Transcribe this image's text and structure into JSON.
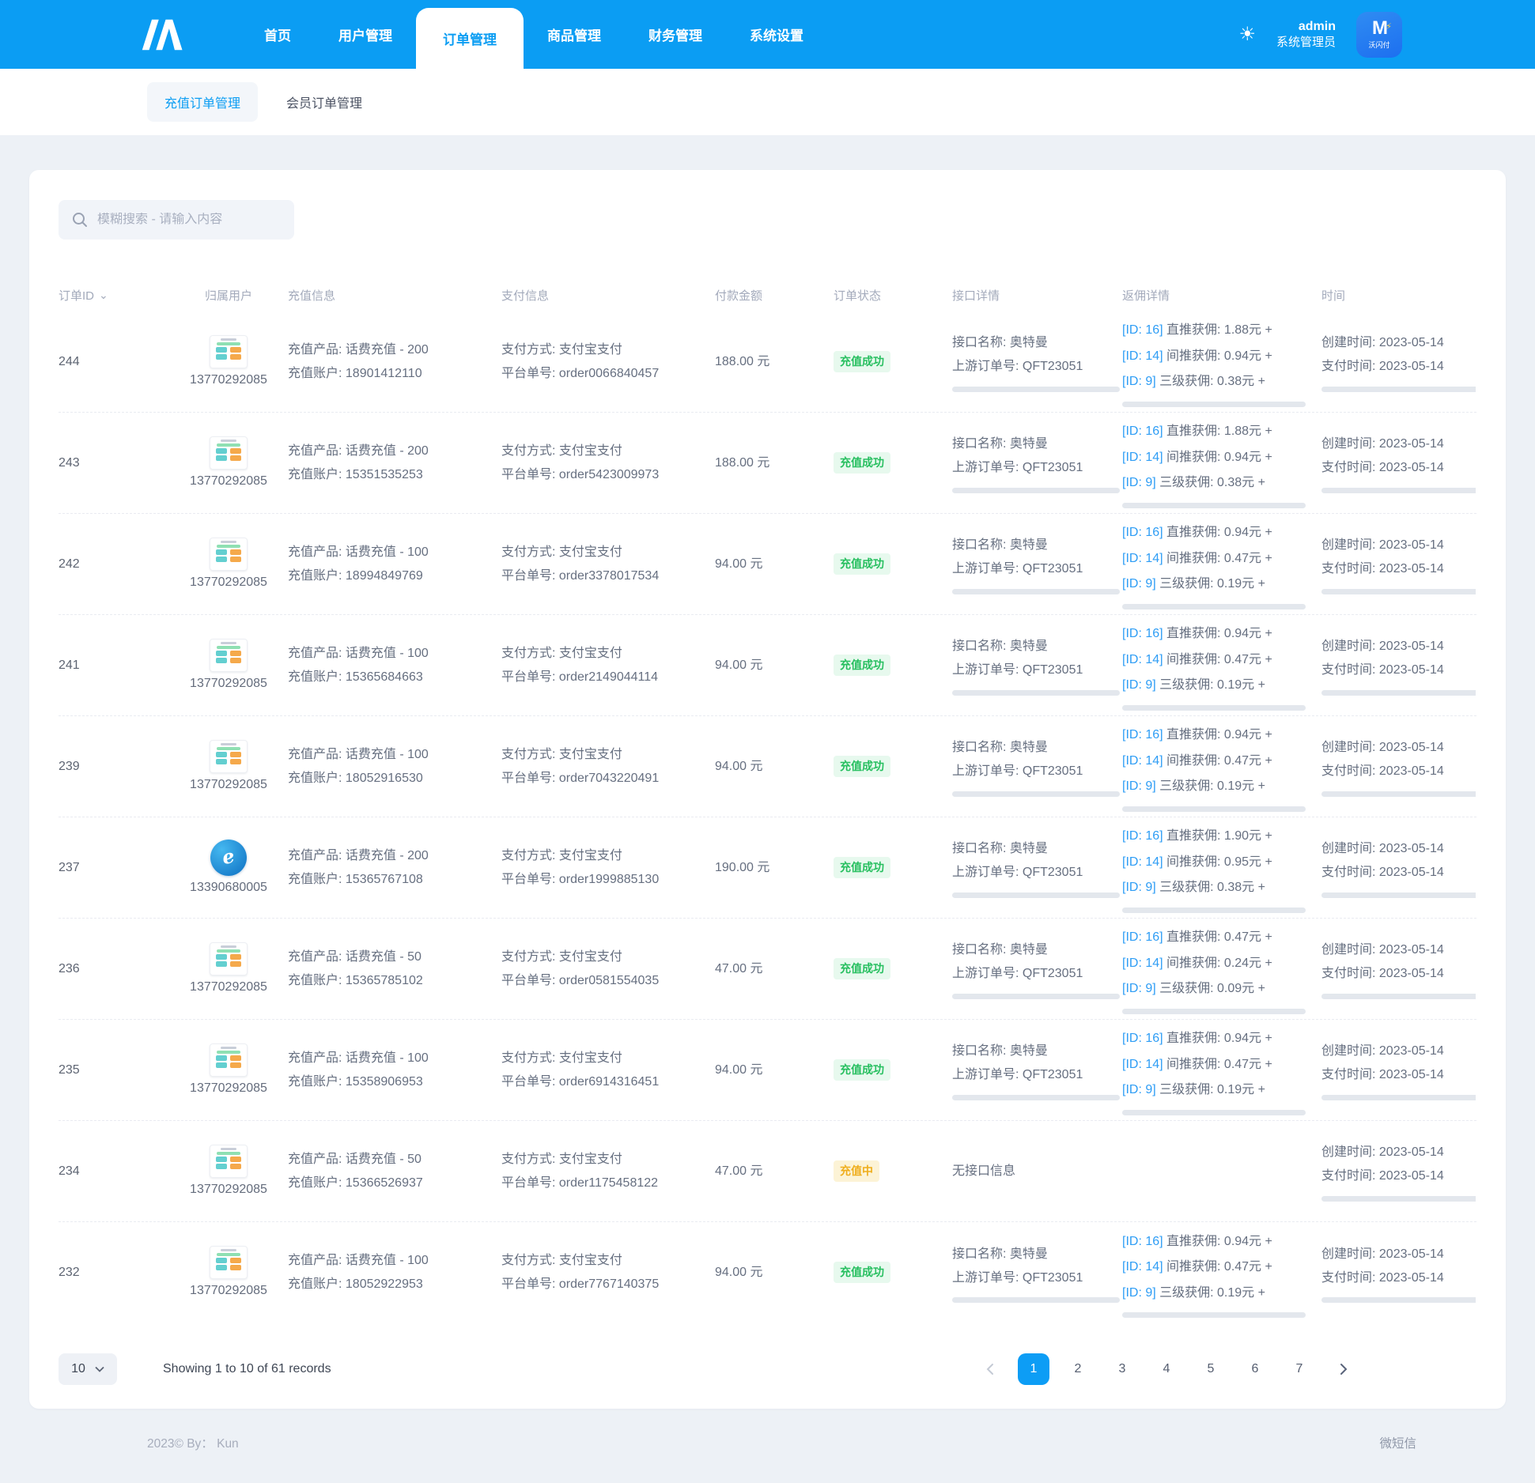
{
  "navbar": {
    "menu": [
      {
        "label": "首页",
        "active": false
      },
      {
        "label": "用户管理",
        "active": false
      },
      {
        "label": "订单管理",
        "active": true
      },
      {
        "label": "商品管理",
        "active": false
      },
      {
        "label": "财务管理",
        "active": false
      },
      {
        "label": "系统设置",
        "active": false
      }
    ],
    "admin_name": "admin",
    "admin_role": "系统管理员",
    "avatar_mark": "M",
    "avatar_caption": "沃闪付",
    "colors": {
      "navbar_blue": "#0b9df3",
      "accent_blue": "#0d9df5"
    }
  },
  "subnav": {
    "tabs": [
      {
        "label": "充值订单管理",
        "active": true
      },
      {
        "label": "会员订单管理",
        "active": false
      }
    ]
  },
  "search": {
    "placeholder": "模糊搜索 - 请输入内容"
  },
  "table": {
    "headers": [
      "订单ID",
      "归属用户",
      "充值信息",
      "支付信息",
      "付款金额",
      "订单状态",
      "接口详情",
      "返佣详情",
      "时间"
    ],
    "status_colors": {
      "success_text": "#26bf5f",
      "success_bg": "#e7f9ee",
      "pending_text": "#efae1d",
      "pending_bg": "#fcf3d6"
    },
    "rows": [
      {
        "id": "244",
        "phone": "13770292085",
        "avatar": "app",
        "product": "充值产品: 话费充值 - 200",
        "account": "充值账户: 18901412110",
        "pay_method": "支付方式: 支付宝支付",
        "pay_no": "平台单号: order0066840457",
        "amount": "188.00 元",
        "status": "充值成功",
        "status_type": "success",
        "api_name": "接口名称: 奥特曼",
        "api_order": "上游订单号: QFT23051",
        "commissions": [
          {
            "id": "[ID: 16]",
            "text": "直推获佣: 1.88元 +"
          },
          {
            "id": "[ID: 14]",
            "text": "间推获佣: 0.94元 +"
          },
          {
            "id": "[ID: 9]",
            "text": "三级获佣: 0.38元 +"
          }
        ],
        "created": "创建时间: 2023-05-14",
        "paid": "支付时间: 2023-05-14"
      },
      {
        "id": "243",
        "phone": "13770292085",
        "avatar": "app",
        "product": "充值产品: 话费充值 - 200",
        "account": "充值账户: 15351535253",
        "pay_method": "支付方式: 支付宝支付",
        "pay_no": "平台单号: order5423009973",
        "amount": "188.00 元",
        "status": "充值成功",
        "status_type": "success",
        "api_name": "接口名称: 奥特曼",
        "api_order": "上游订单号: QFT23051",
        "commissions": [
          {
            "id": "[ID: 16]",
            "text": "直推获佣: 1.88元 +"
          },
          {
            "id": "[ID: 14]",
            "text": "间推获佣: 0.94元 +"
          },
          {
            "id": "[ID: 9]",
            "text": "三级获佣: 0.38元 +"
          }
        ],
        "created": "创建时间: 2023-05-14",
        "paid": "支付时间: 2023-05-14"
      },
      {
        "id": "242",
        "phone": "13770292085",
        "avatar": "app",
        "product": "充值产品: 话费充值 - 100",
        "account": "充值账户: 18994849769",
        "pay_method": "支付方式: 支付宝支付",
        "pay_no": "平台单号: order3378017534",
        "amount": "94.00 元",
        "status": "充值成功",
        "status_type": "success",
        "api_name": "接口名称: 奥特曼",
        "api_order": "上游订单号: QFT23051",
        "commissions": [
          {
            "id": "[ID: 16]",
            "text": "直推获佣: 0.94元 +"
          },
          {
            "id": "[ID: 14]",
            "text": "间推获佣: 0.47元 +"
          },
          {
            "id": "[ID: 9]",
            "text": "三级获佣: 0.19元 +"
          }
        ],
        "created": "创建时间: 2023-05-14",
        "paid": "支付时间: 2023-05-14"
      },
      {
        "id": "241",
        "phone": "13770292085",
        "avatar": "app",
        "product": "充值产品: 话费充值 - 100",
        "account": "充值账户: 15365684663",
        "pay_method": "支付方式: 支付宝支付",
        "pay_no": "平台单号: order2149044114",
        "amount": "94.00 元",
        "status": "充值成功",
        "status_type": "success",
        "api_name": "接口名称: 奥特曼",
        "api_order": "上游订单号: QFT23051",
        "commissions": [
          {
            "id": "[ID: 16]",
            "text": "直推获佣: 0.94元 +"
          },
          {
            "id": "[ID: 14]",
            "text": "间推获佣: 0.47元 +"
          },
          {
            "id": "[ID: 9]",
            "text": "三级获佣: 0.19元 +"
          }
        ],
        "created": "创建时间: 2023-05-14",
        "paid": "支付时间: 2023-05-14"
      },
      {
        "id": "239",
        "phone": "13770292085",
        "avatar": "app",
        "product": "充值产品: 话费充值 - 100",
        "account": "充值账户: 18052916530",
        "pay_method": "支付方式: 支付宝支付",
        "pay_no": "平台单号: order7043220491",
        "amount": "94.00 元",
        "status": "充值成功",
        "status_type": "success",
        "api_name": "接口名称: 奥特曼",
        "api_order": "上游订单号: QFT23051",
        "commissions": [
          {
            "id": "[ID: 16]",
            "text": "直推获佣: 0.94元 +"
          },
          {
            "id": "[ID: 14]",
            "text": "间推获佣: 0.47元 +"
          },
          {
            "id": "[ID: 9]",
            "text": "三级获佣: 0.19元 +"
          }
        ],
        "created": "创建时间: 2023-05-14",
        "paid": "支付时间: 2023-05-14"
      },
      {
        "id": "237",
        "phone": "13390680005",
        "avatar": "telecom",
        "product": "充值产品: 话费充值 - 200",
        "account": "充值账户: 15365767108",
        "pay_method": "支付方式: 支付宝支付",
        "pay_no": "平台单号: order1999885130",
        "amount": "190.00 元",
        "status": "充值成功",
        "status_type": "success",
        "api_name": "接口名称: 奥特曼",
        "api_order": "上游订单号: QFT23051",
        "commissions": [
          {
            "id": "[ID: 16]",
            "text": "直推获佣: 1.90元 +"
          },
          {
            "id": "[ID: 14]",
            "text": "间推获佣: 0.95元 +"
          },
          {
            "id": "[ID: 9]",
            "text": "三级获佣: 0.38元 +"
          }
        ],
        "created": "创建时间: 2023-05-14",
        "paid": "支付时间: 2023-05-14"
      },
      {
        "id": "236",
        "phone": "13770292085",
        "avatar": "app",
        "product": "充值产品: 话费充值 - 50",
        "account": "充值账户: 15365785102",
        "pay_method": "支付方式: 支付宝支付",
        "pay_no": "平台单号: order0581554035",
        "amount": "47.00 元",
        "status": "充值成功",
        "status_type": "success",
        "api_name": "接口名称: 奥特曼",
        "api_order": "上游订单号: QFT23051",
        "commissions": [
          {
            "id": "[ID: 16]",
            "text": "直推获佣: 0.47元 +"
          },
          {
            "id": "[ID: 14]",
            "text": "间推获佣: 0.24元 +"
          },
          {
            "id": "[ID: 9]",
            "text": "三级获佣: 0.09元 +"
          }
        ],
        "created": "创建时间: 2023-05-14",
        "paid": "支付时间: 2023-05-14"
      },
      {
        "id": "235",
        "phone": "13770292085",
        "avatar": "app",
        "product": "充值产品: 话费充值 - 100",
        "account": "充值账户: 15358906953",
        "pay_method": "支付方式: 支付宝支付",
        "pay_no": "平台单号: order6914316451",
        "amount": "94.00 元",
        "status": "充值成功",
        "status_type": "success",
        "api_name": "接口名称: 奥特曼",
        "api_order": "上游订单号: QFT23051",
        "commissions": [
          {
            "id": "[ID: 16]",
            "text": "直推获佣: 0.94元 +"
          },
          {
            "id": "[ID: 14]",
            "text": "间推获佣: 0.47元 +"
          },
          {
            "id": "[ID: 9]",
            "text": "三级获佣: 0.19元 +"
          }
        ],
        "created": "创建时间: 2023-05-14",
        "paid": "支付时间: 2023-05-14"
      },
      {
        "id": "234",
        "phone": "13770292085",
        "avatar": "app",
        "product": "充值产品: 话费充值 - 50",
        "account": "充值账户: 15366526937",
        "pay_method": "支付方式: 支付宝支付",
        "pay_no": "平台单号: order1175458122",
        "amount": "47.00 元",
        "status": "充值中",
        "status_type": "pending",
        "api_empty": "无接口信息",
        "commissions": [],
        "created": "创建时间: 2023-05-14",
        "paid": "支付时间: 2023-05-14"
      },
      {
        "id": "232",
        "phone": "13770292085",
        "avatar": "app",
        "product": "充值产品: 话费充值 - 100",
        "account": "充值账户: 18052922953",
        "pay_method": "支付方式: 支付宝支付",
        "pay_no": "平台单号: order7767140375",
        "amount": "94.00 元",
        "status": "充值成功",
        "status_type": "success",
        "api_name": "接口名称: 奥特曼",
        "api_order": "上游订单号: QFT23051",
        "commissions": [
          {
            "id": "[ID: 16]",
            "text": "直推获佣: 0.94元 +"
          },
          {
            "id": "[ID: 14]",
            "text": "间推获佣: 0.47元 +"
          },
          {
            "id": "[ID: 9]",
            "text": "三级获佣: 0.19元 +"
          }
        ],
        "created": "创建时间: 2023-05-14",
        "paid": "支付时间: 2023-05-14"
      }
    ]
  },
  "pagination": {
    "page_size": "10",
    "summary": "Showing 1 to 10 of 61 records",
    "pages": [
      "1",
      "2",
      "3",
      "4",
      "5",
      "6",
      "7"
    ],
    "active_page": "1"
  },
  "footer": {
    "left": "2023©  By： Kun",
    "right": "微短信"
  }
}
